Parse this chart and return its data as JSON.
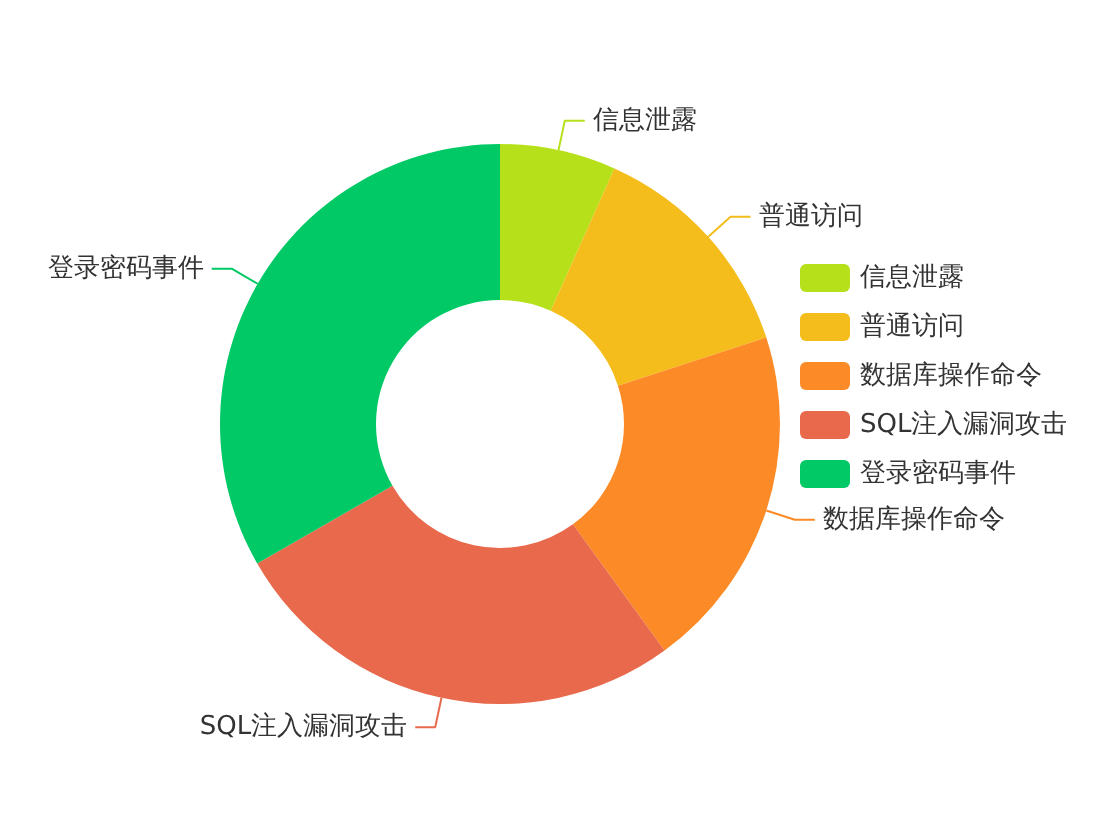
{
  "chart_data": {
    "type": "donut",
    "categories": [
      "信息泄露",
      "普通访问",
      "数据库操作命令",
      "SQL注入漏洞攻击",
      "登录密码事件"
    ],
    "values": [
      6.7,
      13.3,
      20,
      26.7,
      33.3
    ],
    "colors": [
      "#b6e01a",
      "#f4bd1c",
      "#fc8b27",
      "#e8694b",
      "#00c965"
    ],
    "legend": "right"
  }
}
